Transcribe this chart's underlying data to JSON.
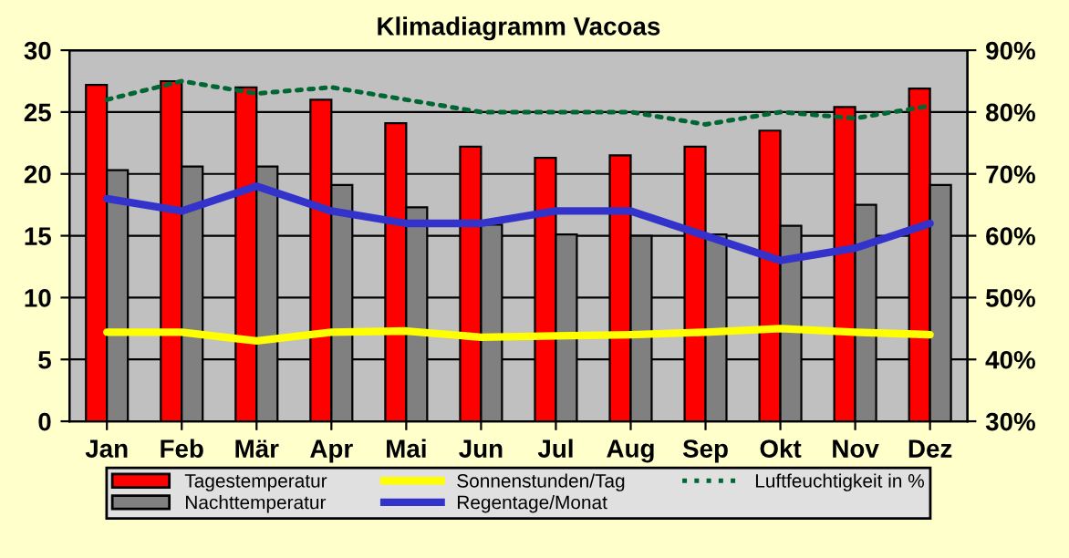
{
  "chart_data": {
    "type": "bar",
    "title": "Klimadiagramm Vacoas",
    "categories": [
      "Jan",
      "Feb",
      "Mär",
      "Apr",
      "Mai",
      "Jun",
      "Jul",
      "Aug",
      "Sep",
      "Okt",
      "Nov",
      "Dez"
    ],
    "series": [
      {
        "name": "Tagestemperatur",
        "color": "#ff0000",
        "values": [
          27.2,
          27.5,
          27.0,
          26.0,
          24.1,
          22.2,
          21.3,
          21.5,
          22.2,
          23.5,
          25.4,
          26.9
        ]
      },
      {
        "name": "Nachttemperatur",
        "color": "#808080",
        "values": [
          20.3,
          20.6,
          20.6,
          19.1,
          17.3,
          15.9,
          15.1,
          15.0,
          15.1,
          15.8,
          17.5,
          19.1
        ]
      },
      {
        "name": "Sonnenstunden/Tag",
        "type": "line",
        "color": "#ffff00",
        "line_style": "solid",
        "values": [
          7.2,
          7.2,
          6.5,
          7.2,
          7.3,
          6.8,
          6.9,
          7.0,
          7.2,
          7.5,
          7.2,
          7.0
        ]
      },
      {
        "name": "Regentage/Monat",
        "type": "line",
        "color": "#3333cc",
        "line_style": "solid",
        "values": [
          18,
          17,
          19,
          17,
          16,
          16,
          17,
          17,
          15,
          13,
          14,
          16
        ]
      },
      {
        "name": "Luftfeuchtigkeit in %",
        "type": "line",
        "color": "#006633",
        "line_style": "dotted",
        "axis": "y2",
        "values": [
          82,
          85,
          83,
          84,
          82,
          80,
          80,
          80,
          78,
          80,
          79,
          81
        ]
      }
    ],
    "ylim": [
      0,
      30
    ],
    "yticks": [
      0,
      5,
      10,
      15,
      20,
      25,
      30
    ],
    "y2lim": [
      30,
      90
    ],
    "y2ticks": [
      {
        "value": 30,
        "label": "30%"
      },
      {
        "value": 40,
        "label": "40%"
      },
      {
        "value": 50,
        "label": "50%"
      },
      {
        "value": 60,
        "label": "60%"
      },
      {
        "value": 70,
        "label": "70%"
      },
      {
        "value": 80,
        "label": "80%"
      },
      {
        "value": 90,
        "label": "90%"
      }
    ],
    "grid": "y",
    "legend": "bottom",
    "marker": "none"
  }
}
